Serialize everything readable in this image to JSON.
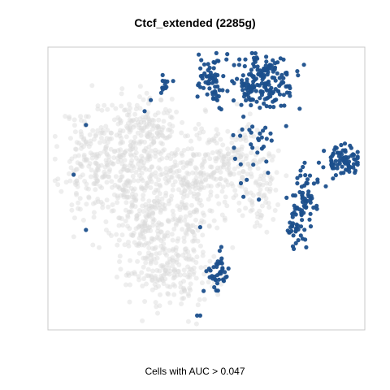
{
  "chart_data": {
    "type": "scatter",
    "title": "Ctcf_extended (2285g)",
    "xlabel": "Cells with AUC > 0.047",
    "ylabel": "",
    "grid": false,
    "legend": "none",
    "colors": {
      "highlight": "#1b4f8c",
      "background": "#d9d9d9",
      "frame": "#c8c8c8"
    },
    "clusters": [
      {
        "name": "",
        "color": "#d9d9d9",
        "center": [
          0.12,
          0.6
        ],
        "spread": [
          0.045,
          0.1
        ],
        "n": 140,
        "seed": 11
      },
      {
        "name": "",
        "color": "#d9d9d9",
        "center": [
          0.27,
          0.55
        ],
        "spread": [
          0.08,
          0.12
        ],
        "n": 280,
        "seed": 12
      },
      {
        "name": "",
        "color": "#d9d9d9",
        "center": [
          0.3,
          0.72
        ],
        "spread": [
          0.06,
          0.06
        ],
        "n": 130,
        "seed": 13
      },
      {
        "name": "",
        "color": "#d9d9d9",
        "center": [
          0.45,
          0.52
        ],
        "spread": [
          0.05,
          0.1
        ],
        "n": 170,
        "seed": 14
      },
      {
        "name": "",
        "color": "#d9d9d9",
        "center": [
          0.58,
          0.6
        ],
        "spread": [
          0.055,
          0.08
        ],
        "n": 150,
        "seed": 15
      },
      {
        "name": "",
        "color": "#d9d9d9",
        "center": [
          0.38,
          0.22
        ],
        "spread": [
          0.08,
          0.08
        ],
        "n": 240,
        "seed": 16
      },
      {
        "name": "",
        "color": "#d9d9d9",
        "center": [
          0.3,
          0.38
        ],
        "spread": [
          0.06,
          0.06
        ],
        "n": 110,
        "seed": 17
      },
      {
        "name": "",
        "color": "#d9d9d9",
        "center": [
          0.68,
          0.5
        ],
        "spread": [
          0.03,
          0.08
        ],
        "n": 70,
        "seed": 18
      },
      {
        "name": "",
        "color": "#1b4f8c",
        "center": [
          0.68,
          0.88
        ],
        "spread": [
          0.055,
          0.05
        ],
        "n": 190,
        "seed": 21
      },
      {
        "name": "",
        "color": "#1b4f8c",
        "center": [
          0.51,
          0.9
        ],
        "spread": [
          0.02,
          0.04
        ],
        "n": 55,
        "seed": 22
      },
      {
        "name": "",
        "color": "#1b4f8c",
        "center": [
          0.94,
          0.6
        ],
        "spread": [
          0.028,
          0.025
        ],
        "n": 80,
        "seed": 23
      },
      {
        "name": "",
        "color": "#1b4f8c",
        "center": [
          0.81,
          0.45
        ],
        "spread": [
          0.025,
          0.07
        ],
        "n": 60,
        "seed": 24
      },
      {
        "name": "",
        "color": "#1b4f8c",
        "center": [
          0.8,
          0.35
        ],
        "spread": [
          0.02,
          0.03
        ],
        "n": 30,
        "seed": 25
      },
      {
        "name": "",
        "color": "#1b4f8c",
        "center": [
          0.54,
          0.21
        ],
        "spread": [
          0.02,
          0.04
        ],
        "n": 40,
        "seed": 26
      },
      {
        "name": "",
        "color": "#1b4f8c",
        "center": [
          0.36,
          0.88
        ],
        "spread": [
          0.012,
          0.02
        ],
        "n": 12,
        "seed": 27
      },
      {
        "name": "",
        "color": "#1b4f8c",
        "center": [
          0.68,
          0.7
        ],
        "spread": [
          0.04,
          0.02
        ],
        "n": 16,
        "seed": 28
      },
      {
        "name": "",
        "color": "#1b4f8c",
        "center": [
          0.61,
          0.6
        ],
        "spread": [
          0.06,
          0.05
        ],
        "n": 12,
        "seed": 29
      }
    ],
    "points": [
      {
        "x": 0.32,
        "y": 0.82,
        "color": "#1b4f8c"
      },
      {
        "x": 0.11,
        "y": 0.73,
        "color": "#1b4f8c"
      },
      {
        "x": 0.07,
        "y": 0.55,
        "color": "#1b4f8c"
      },
      {
        "x": 0.11,
        "y": 0.35,
        "color": "#1b4f8c"
      },
      {
        "x": 0.62,
        "y": 0.47,
        "color": "#1b4f8c"
      },
      {
        "x": 0.67,
        "y": 0.46,
        "color": "#1b4f8c"
      },
      {
        "x": 0.48,
        "y": 0.36,
        "color": "#1b4f8c"
      },
      {
        "x": 0.47,
        "y": 0.04,
        "color": "#1b4f8c"
      },
      {
        "x": 0.48,
        "y": 0.04,
        "color": "#1b4f8c"
      },
      {
        "x": 0.3,
        "y": 0.78,
        "color": "#1b4f8c"
      },
      {
        "x": 0.62,
        "y": 0.76,
        "color": "#1b4f8c"
      }
    ],
    "xlim": [
      0,
      1
    ],
    "ylim": [
      0,
      1
    ]
  }
}
